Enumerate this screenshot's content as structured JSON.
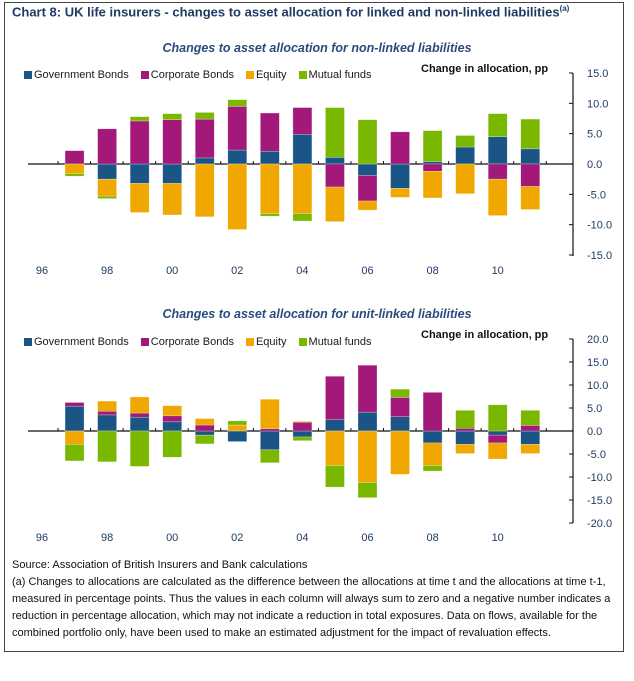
{
  "title": "Chart 8: UK life insurers - changes to asset allocation for linked and non-linked liabilities",
  "title_superscript": "(a)",
  "legend": [
    {
      "name": "Government Bonds",
      "color": "#1b5586"
    },
    {
      "name": "Corporate Bonds",
      "color": "#a3197a"
    },
    {
      "name": "Equity",
      "color": "#f0a800"
    },
    {
      "name": "Mutual funds",
      "color": "#7ab800"
    }
  ],
  "axis_title": "Change in allocation, pp",
  "source": "Source: Association of British Insurers and Bank calculations",
  "footnote": "(a) Changes to allocations are calculated as the difference between the allocations at time t and the allocations at time t-1, measured in percentage points. Thus the values in each column will always sum to zero and a negative number indicates a reduction in percentage allocation, which may not indicate a reduction in total exposures. Data on flows, available for the combined portfolio only, have been used to make an estimated adjustment for the impact of revaluation effects.",
  "chart_data": [
    {
      "type": "bar",
      "stacked": true,
      "title": "Changes to asset allocation for non-linked liabilities",
      "ylabel": "Change in allocation, pp",
      "ylim": [
        -15,
        15
      ],
      "yticks": [
        "15.0",
        "10.0",
        "5.0",
        "0.0",
        "-5.0",
        "-10.0",
        "-15.0"
      ],
      "xtick_labels": [
        "96",
        "98",
        "00",
        "02",
        "04",
        "06",
        "08",
        "10"
      ],
      "categories": [
        "1997",
        "1998",
        "1999",
        "2000",
        "2001",
        "2002",
        "2003",
        "2004",
        "2005",
        "2006",
        "2007",
        "2008",
        "2009",
        "2010",
        "2011"
      ],
      "series": [
        {
          "name": "Government Bonds",
          "values": [
            0.0,
            -2.5,
            -3.2,
            -3.2,
            1.0,
            2.3,
            2.1,
            4.9,
            1.1,
            -1.9,
            -4.0,
            0.4,
            2.8,
            4.5,
            2.5
          ]
        },
        {
          "name": "Corporate Bonds",
          "values": [
            2.2,
            5.8,
            7.1,
            7.3,
            6.4,
            7.2,
            6.3,
            4.4,
            -3.8,
            -4.2,
            5.3,
            -1.2,
            0.0,
            -2.5,
            -3.7
          ]
        },
        {
          "name": "Equity",
          "values": [
            -1.6,
            -2.8,
            -4.8,
            -5.2,
            -8.7,
            -10.8,
            -8.2,
            -8.2,
            -5.7,
            -1.5,
            -1.5,
            -4.4,
            -4.9,
            -6.0,
            -3.8
          ]
        },
        {
          "name": "Mutual funds",
          "values": [
            -0.4,
            -0.4,
            0.7,
            1.0,
            1.1,
            1.1,
            -0.4,
            -1.2,
            8.2,
            7.3,
            0.0,
            5.1,
            1.9,
            3.8,
            4.9
          ]
        }
      ]
    },
    {
      "type": "bar",
      "stacked": true,
      "title": "Changes to asset allocation for unit-linked liabilities",
      "ylabel": "Change in allocation, pp",
      "ylim": [
        -20,
        20
      ],
      "yticks": [
        "20.0",
        "15.0",
        "10.0",
        "5.0",
        "0.0",
        "-5.0",
        "-10.0",
        "-15.0",
        "-20.0"
      ],
      "xtick_labels": [
        "96",
        "98",
        "00",
        "02",
        "04",
        "06",
        "08",
        "10"
      ],
      "categories": [
        "1997",
        "1998",
        "1999",
        "2000",
        "2001",
        "2002",
        "2003",
        "2004",
        "2005",
        "2006",
        "2007",
        "2008",
        "2009",
        "2010",
        "2011"
      ],
      "series": [
        {
          "name": "Government Bonds",
          "values": [
            5.4,
            3.5,
            3.0,
            2.0,
            -0.9,
            -2.3,
            -4.1,
            -1.3,
            2.5,
            4.1,
            3.1,
            -2.6,
            -2.9,
            -0.9,
            -2.9
          ]
        },
        {
          "name": "Corporate Bonds",
          "values": [
            0.8,
            0.8,
            0.9,
            1.3,
            1.3,
            0.0,
            0.5,
            1.9,
            9.4,
            10.2,
            4.2,
            8.4,
            0.6,
            -1.7,
            1.2
          ]
        },
        {
          "name": "Equity",
          "values": [
            -2.9,
            2.2,
            3.5,
            2.2,
            1.4,
            1.3,
            6.4,
            0.2,
            -7.5,
            -11.2,
            -9.4,
            -4.9,
            -2.0,
            -3.5,
            -2.0
          ]
        },
        {
          "name": "Mutual funds",
          "values": [
            -3.6,
            -6.7,
            -7.7,
            -5.7,
            -1.9,
            0.9,
            -2.8,
            -0.8,
            -4.7,
            -3.3,
            1.8,
            -1.2,
            3.9,
            5.7,
            3.3
          ]
        }
      ]
    }
  ]
}
